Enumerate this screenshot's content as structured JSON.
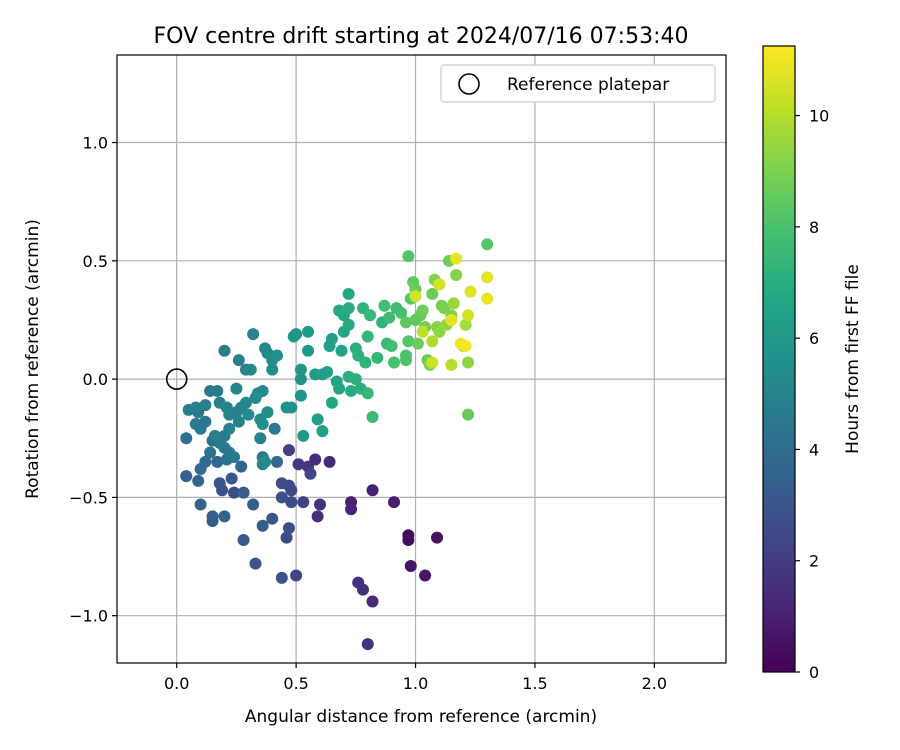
{
  "chart_data": {
    "type": "scatter",
    "title": "FOV centre drift starting at 2024/07/16 07:53:40",
    "xlabel": "Angular distance from reference (arcmin)",
    "ylabel": "Rotation from reference (arcmin)",
    "xlim": [
      -0.25,
      2.3
    ],
    "ylim": [
      -1.2,
      1.37
    ],
    "x_ticks": [
      0.0,
      0.5,
      1.0,
      1.5,
      2.0
    ],
    "x_tick_labels": [
      "0.0",
      "0.5",
      "1.0",
      "1.5",
      "2.0"
    ],
    "y_ticks": [
      -1.0,
      -0.5,
      0.0,
      0.5,
      1.0
    ],
    "y_tick_labels": [
      "−1.0",
      "−0.5",
      "0.0",
      "0.5",
      "1.0"
    ],
    "grid": true,
    "legend": {
      "placement": "top-right",
      "entries": [
        {
          "label": "Reference platepar",
          "marker": "open-circle"
        }
      ]
    },
    "reference_point": {
      "x": 0.0,
      "y": 0.0
    },
    "colorbar": {
      "label": "Hours from first FF file",
      "colormap": "viridis",
      "range": [
        0,
        11.25
      ],
      "ticks": [
        0,
        2,
        4,
        6,
        8,
        10
      ],
      "tick_labels": [
        "0",
        "2",
        "4",
        "6",
        "8",
        "10"
      ]
    },
    "points": [
      {
        "x": 0.97,
        "y": -0.66,
        "h": 0.3
      },
      {
        "x": 0.97,
        "y": -0.68,
        "h": 0.4
      },
      {
        "x": 1.09,
        "y": -0.67,
        "h": 0.5
      },
      {
        "x": 0.98,
        "y": -0.79,
        "h": 0.6
      },
      {
        "x": 1.04,
        "y": -0.83,
        "h": 0.7
      },
      {
        "x": 0.91,
        "y": -0.52,
        "h": 0.9
      },
      {
        "x": 0.82,
        "y": -0.47,
        "h": 1.0
      },
      {
        "x": 0.73,
        "y": -0.52,
        "h": 1.1
      },
      {
        "x": 0.73,
        "y": -0.55,
        "h": 1.2
      },
      {
        "x": 0.82,
        "y": -0.94,
        "h": 1.3
      },
      {
        "x": 0.78,
        "y": -0.89,
        "h": 1.5
      },
      {
        "x": 0.76,
        "y": -0.86,
        "h": 1.6
      },
      {
        "x": 0.8,
        "y": -1.12,
        "h": 1.7
      },
      {
        "x": 0.59,
        "y": -0.58,
        "h": 1.5
      },
      {
        "x": 0.58,
        "y": -0.34,
        "h": 1.4
      },
      {
        "x": 0.64,
        "y": -0.35,
        "h": 1.3
      },
      {
        "x": 0.6,
        "y": -0.53,
        "h": 1.6
      },
      {
        "x": 0.55,
        "y": -0.37,
        "h": 1.8
      },
      {
        "x": 0.51,
        "y": -0.36,
        "h": 1.9
      },
      {
        "x": 0.47,
        "y": -0.3,
        "h": 2.0
      },
      {
        "x": 0.53,
        "y": -0.52,
        "h": 2.2
      },
      {
        "x": 0.56,
        "y": -0.4,
        "h": 2.3
      },
      {
        "x": 0.47,
        "y": -0.45,
        "h": 2.4
      },
      {
        "x": 0.48,
        "y": -0.47,
        "h": 2.5
      },
      {
        "x": 0.48,
        "y": -0.52,
        "h": 2.6
      },
      {
        "x": 0.44,
        "y": -0.44,
        "h": 2.7
      },
      {
        "x": 0.44,
        "y": -0.5,
        "h": 2.8
      },
      {
        "x": 0.5,
        "y": -0.83,
        "h": 2.3
      },
      {
        "x": 0.44,
        "y": -0.84,
        "h": 2.9
      },
      {
        "x": 0.46,
        "y": -0.67,
        "h": 2.5
      },
      {
        "x": 0.47,
        "y": -0.63,
        "h": 2.7
      },
      {
        "x": 0.4,
        "y": -0.59,
        "h": 3.0
      },
      {
        "x": 0.33,
        "y": -0.78,
        "h": 3.1
      },
      {
        "x": 0.28,
        "y": -0.68,
        "h": 3.2
      },
      {
        "x": 0.36,
        "y": -0.62,
        "h": 3.3
      },
      {
        "x": 0.32,
        "y": -0.53,
        "h": 3.4
      },
      {
        "x": 0.24,
        "y": -0.48,
        "h": 2.6
      },
      {
        "x": 0.19,
        "y": -0.47,
        "h": 2.8
      },
      {
        "x": 0.18,
        "y": -0.44,
        "h": 3.0
      },
      {
        "x": 0.23,
        "y": -0.42,
        "h": 3.1
      },
      {
        "x": 0.28,
        "y": -0.48,
        "h": 3.3
      },
      {
        "x": 0.2,
        "y": -0.58,
        "h": 3.5
      },
      {
        "x": 0.15,
        "y": -0.6,
        "h": 3.2
      },
      {
        "x": 0.15,
        "y": -0.58,
        "h": 3.4
      },
      {
        "x": 0.1,
        "y": -0.53,
        "h": 3.6
      },
      {
        "x": 0.04,
        "y": -0.41,
        "h": 3.5
      },
      {
        "x": 0.09,
        "y": -0.43,
        "h": 3.7
      },
      {
        "x": 0.1,
        "y": -0.38,
        "h": 3.9
      },
      {
        "x": 0.12,
        "y": -0.35,
        "h": 4.0
      },
      {
        "x": 0.17,
        "y": -0.35,
        "h": 3.8
      },
      {
        "x": 0.15,
        "y": -0.26,
        "h": 4.1
      },
      {
        "x": 0.14,
        "y": -0.31,
        "h": 4.3
      },
      {
        "x": 0.21,
        "y": -0.34,
        "h": 4.2
      },
      {
        "x": 0.2,
        "y": -0.29,
        "h": 4.4
      },
      {
        "x": 0.22,
        "y": -0.31,
        "h": 4.5
      },
      {
        "x": 0.24,
        "y": -0.33,
        "h": 4.6
      },
      {
        "x": 0.27,
        "y": -0.37,
        "h": 3.6
      },
      {
        "x": 0.36,
        "y": -0.33,
        "h": 4.7
      },
      {
        "x": 0.36,
        "y": -0.36,
        "h": 4.9
      },
      {
        "x": 0.37,
        "y": -0.35,
        "h": 5.3
      },
      {
        "x": 0.42,
        "y": -0.35,
        "h": 3.7
      },
      {
        "x": 0.35,
        "y": -0.25,
        "h": 4.8
      },
      {
        "x": 0.41,
        "y": -0.21,
        "h": 4.6
      },
      {
        "x": 0.04,
        "y": -0.25,
        "h": 4.2
      },
      {
        "x": 0.1,
        "y": -0.21,
        "h": 4.4
      },
      {
        "x": 0.08,
        "y": -0.19,
        "h": 4.5
      },
      {
        "x": 0.09,
        "y": -0.14,
        "h": 4.6
      },
      {
        "x": 0.05,
        "y": -0.13,
        "h": 4.7
      },
      {
        "x": 0.08,
        "y": -0.12,
        "h": 4.8
      },
      {
        "x": 0.12,
        "y": -0.11,
        "h": 4.9
      },
      {
        "x": 0.14,
        "y": -0.05,
        "h": 4.5
      },
      {
        "x": 0.17,
        "y": -0.05,
        "h": 4.7
      },
      {
        "x": 0.18,
        "y": -0.1,
        "h": 4.9
      },
      {
        "x": 0.21,
        "y": -0.12,
        "h": 5.0
      },
      {
        "x": 0.22,
        "y": -0.15,
        "h": 5.1
      },
      {
        "x": 0.25,
        "y": -0.14,
        "h": 4.8
      },
      {
        "x": 0.27,
        "y": -0.12,
        "h": 5.0
      },
      {
        "x": 0.29,
        "y": -0.1,
        "h": 5.2
      },
      {
        "x": 0.26,
        "y": -0.18,
        "h": 4.9
      },
      {
        "x": 0.22,
        "y": -0.21,
        "h": 5.0
      },
      {
        "x": 0.2,
        "y": -0.24,
        "h": 4.7
      },
      {
        "x": 0.18,
        "y": -0.27,
        "h": 4.6
      },
      {
        "x": 0.16,
        "y": -0.24,
        "h": 4.8
      },
      {
        "x": 0.12,
        "y": -0.18,
        "h": 4.4
      },
      {
        "x": 0.3,
        "y": -0.15,
        "h": 5.3
      },
      {
        "x": 0.33,
        "y": -0.08,
        "h": 5.2
      },
      {
        "x": 0.34,
        "y": -0.06,
        "h": 5.4
      },
      {
        "x": 0.36,
        "y": -0.05,
        "h": 5.3
      },
      {
        "x": 0.35,
        "y": -0.17,
        "h": 5.5
      },
      {
        "x": 0.36,
        "y": -0.19,
        "h": 5.6
      },
      {
        "x": 0.38,
        "y": -0.14,
        "h": 5.5
      },
      {
        "x": 0.25,
        "y": -0.04,
        "h": 5.1
      },
      {
        "x": 0.29,
        "y": 0.04,
        "h": 5.0
      },
      {
        "x": 0.31,
        "y": 0.04,
        "h": 5.2
      },
      {
        "x": 0.26,
        "y": 0.08,
        "h": 4.9
      },
      {
        "x": 0.2,
        "y": 0.12,
        "h": 4.7
      },
      {
        "x": 0.32,
        "y": 0.19,
        "h": 5.0
      },
      {
        "x": 0.37,
        "y": 0.13,
        "h": 5.1
      },
      {
        "x": 0.38,
        "y": 0.11,
        "h": 5.2
      },
      {
        "x": 0.4,
        "y": 0.04,
        "h": 5.4
      },
      {
        "x": 0.4,
        "y": 0.08,
        "h": 5.5
      },
      {
        "x": 0.42,
        "y": 0.1,
        "h": 5.6
      },
      {
        "x": 0.46,
        "y": -0.12,
        "h": 5.6
      },
      {
        "x": 0.48,
        "y": -0.12,
        "h": 5.7
      },
      {
        "x": 0.52,
        "y": -0.07,
        "h": 5.8
      },
      {
        "x": 0.52,
        "y": 0.0,
        "h": 5.7
      },
      {
        "x": 0.52,
        "y": 0.04,
        "h": 5.9
      },
      {
        "x": 0.55,
        "y": 0.12,
        "h": 6.0
      },
      {
        "x": 0.49,
        "y": 0.18,
        "h": 5.9
      },
      {
        "x": 0.5,
        "y": 0.19,
        "h": 5.8
      },
      {
        "x": 0.55,
        "y": 0.2,
        "h": 6.1
      },
      {
        "x": 0.53,
        "y": -0.24,
        "h": 6.0
      },
      {
        "x": 0.59,
        "y": -0.17,
        "h": 6.2
      },
      {
        "x": 0.61,
        "y": -0.22,
        "h": 6.3
      },
      {
        "x": 0.58,
        "y": 0.02,
        "h": 6.1
      },
      {
        "x": 0.61,
        "y": 0.02,
        "h": 6.3
      },
      {
        "x": 0.63,
        "y": 0.03,
        "h": 6.4
      },
      {
        "x": 0.64,
        "y": 0.14,
        "h": 6.2
      },
      {
        "x": 0.65,
        "y": 0.17,
        "h": 6.3
      },
      {
        "x": 0.67,
        "y": -0.01,
        "h": 6.5
      },
      {
        "x": 0.68,
        "y": -0.04,
        "h": 6.6
      },
      {
        "x": 0.65,
        "y": -0.1,
        "h": 6.7
      },
      {
        "x": 0.69,
        "y": 0.12,
        "h": 6.5
      },
      {
        "x": 0.7,
        "y": 0.2,
        "h": 6.6
      },
      {
        "x": 0.7,
        "y": 0.27,
        "h": 6.7
      },
      {
        "x": 0.68,
        "y": 0.29,
        "h": 6.8
      },
      {
        "x": 0.72,
        "y": 0.36,
        "h": 6.7
      },
      {
        "x": 0.72,
        "y": 0.3,
        "h": 6.9
      },
      {
        "x": 0.72,
        "y": 0.23,
        "h": 6.8
      },
      {
        "x": 0.72,
        "y": 0.01,
        "h": 7.0
      },
      {
        "x": 0.73,
        "y": -0.05,
        "h": 6.9
      },
      {
        "x": 0.75,
        "y": 0.0,
        "h": 7.1
      },
      {
        "x": 0.75,
        "y": 0.13,
        "h": 7.0
      },
      {
        "x": 0.76,
        "y": 0.1,
        "h": 7.2
      },
      {
        "x": 0.77,
        "y": -0.04,
        "h": 7.1
      },
      {
        "x": 0.78,
        "y": 0.3,
        "h": 7.3
      },
      {
        "x": 0.79,
        "y": 0.07,
        "h": 7.2
      },
      {
        "x": 0.8,
        "y": 0.18,
        "h": 7.4
      },
      {
        "x": 0.81,
        "y": 0.27,
        "h": 7.5
      },
      {
        "x": 0.82,
        "y": -0.16,
        "h": 7.6
      },
      {
        "x": 0.8,
        "y": -0.06,
        "h": 7.5
      },
      {
        "x": 0.84,
        "y": 0.09,
        "h": 7.4
      },
      {
        "x": 0.86,
        "y": 0.24,
        "h": 7.3
      },
      {
        "x": 0.88,
        "y": 0.15,
        "h": 7.6
      },
      {
        "x": 0.87,
        "y": 0.31,
        "h": 7.8
      },
      {
        "x": 0.89,
        "y": 0.26,
        "h": 7.7
      },
      {
        "x": 0.9,
        "y": 0.14,
        "h": 7.8
      },
      {
        "x": 0.91,
        "y": 0.07,
        "h": 7.9
      },
      {
        "x": 0.92,
        "y": 0.3,
        "h": 7.7
      },
      {
        "x": 0.94,
        "y": 0.28,
        "h": 7.9
      },
      {
        "x": 0.96,
        "y": 0.08,
        "h": 8.1
      },
      {
        "x": 0.96,
        "y": 0.1,
        "h": 8.0
      },
      {
        "x": 0.97,
        "y": 0.16,
        "h": 8.2
      },
      {
        "x": 0.96,
        "y": 0.24,
        "h": 8.4
      },
      {
        "x": 0.97,
        "y": 0.52,
        "h": 8.2
      },
      {
        "x": 0.98,
        "y": 0.34,
        "h": 8.3
      },
      {
        "x": 0.99,
        "y": 0.41,
        "h": 8.5
      },
      {
        "x": 1.0,
        "y": 0.38,
        "h": 8.6
      },
      {
        "x": 1.0,
        "y": 0.25,
        "h": 8.4
      },
      {
        "x": 1.01,
        "y": 0.15,
        "h": 8.7
      },
      {
        "x": 1.02,
        "y": 0.27,
        "h": 8.5
      },
      {
        "x": 1.03,
        "y": 0.29,
        "h": 8.8
      },
      {
        "x": 1.04,
        "y": 0.22,
        "h": 8.9
      },
      {
        "x": 1.05,
        "y": 0.08,
        "h": 8.6
      },
      {
        "x": 1.06,
        "y": 0.06,
        "h": 9.0
      },
      {
        "x": 1.07,
        "y": 0.36,
        "h": 8.7
      },
      {
        "x": 1.08,
        "y": 0.42,
        "h": 9.1
      },
      {
        "x": 1.09,
        "y": 0.22,
        "h": 9.2
      },
      {
        "x": 1.1,
        "y": 0.2,
        "h": 9.3
      },
      {
        "x": 1.11,
        "y": 0.31,
        "h": 8.9
      },
      {
        "x": 1.12,
        "y": 0.3,
        "h": 9.0
      },
      {
        "x": 1.13,
        "y": 0.23,
        "h": 9.4
      },
      {
        "x": 1.14,
        "y": 0.5,
        "h": 8.8
      },
      {
        "x": 1.15,
        "y": 0.27,
        "h": 9.1
      },
      {
        "x": 1.16,
        "y": 0.32,
        "h": 9.5
      },
      {
        "x": 1.17,
        "y": 0.44,
        "h": 9.2
      },
      {
        "x": 1.2,
        "y": 0.14,
        "h": 9.6
      },
      {
        "x": 1.21,
        "y": 0.23,
        "h": 9.7
      },
      {
        "x": 1.22,
        "y": 0.07,
        "h": 9.3
      },
      {
        "x": 1.22,
        "y": -0.15,
        "h": 8.6
      },
      {
        "x": 1.3,
        "y": 0.57,
        "h": 8.3
      },
      {
        "x": 1.07,
        "y": 0.16,
        "h": 9.9
      },
      {
        "x": 1.07,
        "y": 0.07,
        "h": 10.4
      },
      {
        "x": 1.1,
        "y": 0.4,
        "h": 10.6
      },
      {
        "x": 1.15,
        "y": 0.25,
        "h": 10.8
      },
      {
        "x": 1.17,
        "y": 0.51,
        "h": 10.9
      },
      {
        "x": 1.19,
        "y": 0.15,
        "h": 11.0
      },
      {
        "x": 1.21,
        "y": 0.14,
        "h": 11.1
      },
      {
        "x": 1.22,
        "y": 0.27,
        "h": 10.5
      },
      {
        "x": 1.23,
        "y": 0.37,
        "h": 10.7
      },
      {
        "x": 1.3,
        "y": 0.43,
        "h": 10.8
      },
      {
        "x": 1.3,
        "y": 0.34,
        "h": 10.9
      },
      {
        "x": 1.15,
        "y": 0.06,
        "h": 10.0
      },
      {
        "x": 1.0,
        "y": 0.35,
        "h": 10.5
      },
      {
        "x": 1.03,
        "y": 0.2,
        "h": 10.1
      }
    ]
  }
}
